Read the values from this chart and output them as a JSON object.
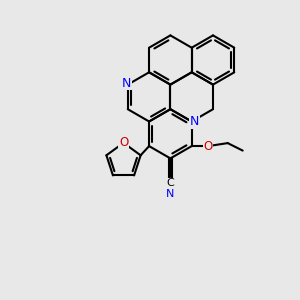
{
  "bg_color": "#e8e8e8",
  "bond_color": "#000000",
  "n_color": "#0000ff",
  "o_color": "#cc0000",
  "lw": 1.5,
  "lw_double": 1.5,
  "figsize": [
    3.0,
    3.0
  ],
  "dpi": 100,
  "xlim": [
    0,
    10
  ],
  "ylim": [
    0,
    10
  ],
  "s": 0.82
}
